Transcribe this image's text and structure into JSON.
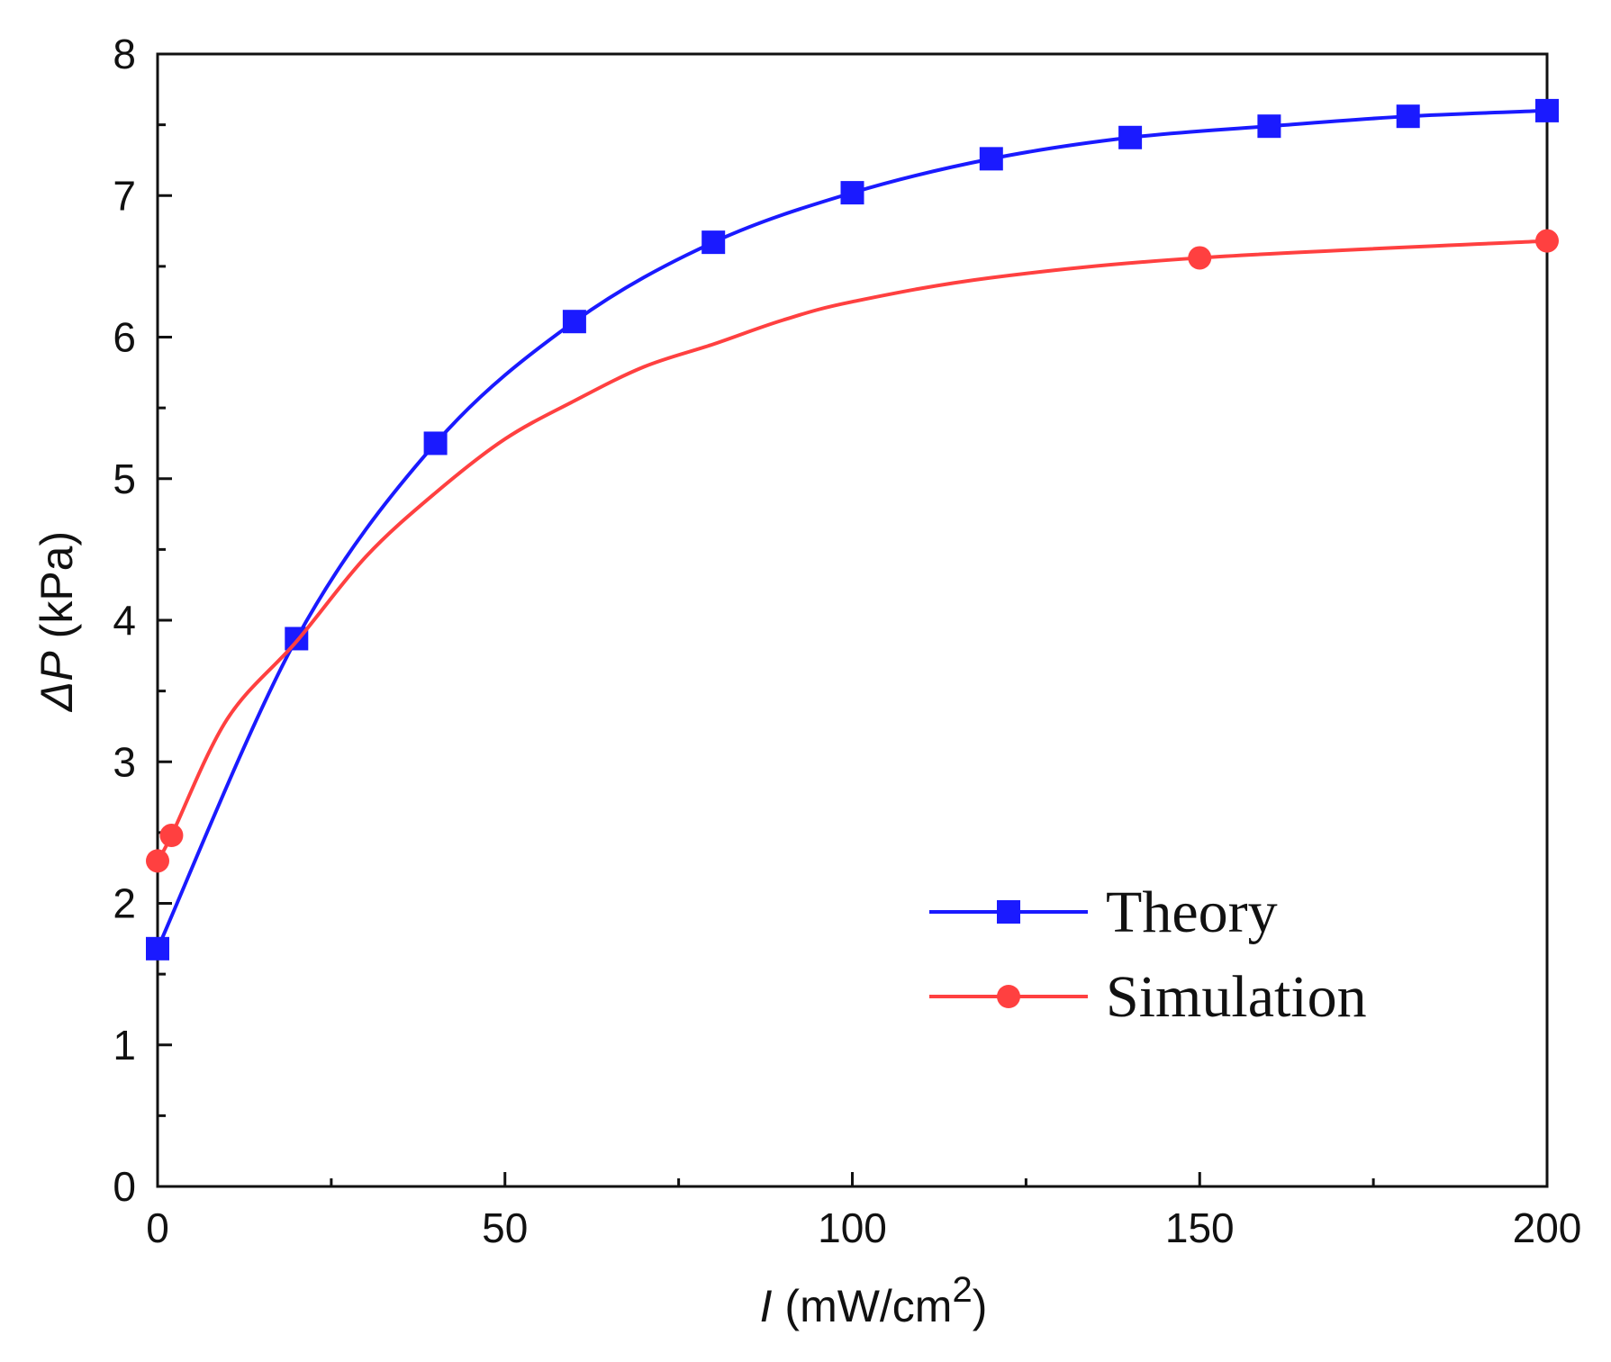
{
  "chart_data": {
    "type": "line",
    "title": "",
    "xlabel": {
      "symbol": "I",
      "unit": " (mW/cm",
      "sup": "2",
      "close": ")"
    },
    "ylabel": {
      "symbol": "ΔP",
      "unit": " (kPa)"
    },
    "xlim": [
      0,
      200
    ],
    "ylim": [
      0,
      8
    ],
    "xticks": [
      0,
      50,
      100,
      150,
      200
    ],
    "yticks": [
      0,
      1,
      2,
      3,
      4,
      5,
      6,
      7,
      8
    ],
    "grid": false,
    "legend_position": "lower-right",
    "series": [
      {
        "name": "Theory",
        "color": "#1a1aff",
        "marker": "square",
        "x": [
          0,
          20,
          40,
          60,
          80,
          100,
          120,
          140,
          160,
          180,
          200
        ],
        "y": [
          1.68,
          3.87,
          5.25,
          6.11,
          6.67,
          7.02,
          7.26,
          7.41,
          7.49,
          7.56,
          7.6
        ]
      },
      {
        "name": "Simulation",
        "color": "#ff4040",
        "marker": "circle",
        "x": [
          0,
          2,
          10,
          20,
          30,
          40,
          50,
          60,
          70,
          80,
          90,
          100,
          120,
          150,
          200
        ],
        "y": [
          2.3,
          2.48,
          3.3,
          3.85,
          4.45,
          4.9,
          5.28,
          5.55,
          5.79,
          5.95,
          6.12,
          6.25,
          6.42,
          6.56,
          6.68
        ],
        "marker_x": [
          0,
          2,
          150,
          200
        ],
        "marker_y": [
          2.3,
          2.48,
          6.56,
          6.68
        ]
      }
    ]
  }
}
